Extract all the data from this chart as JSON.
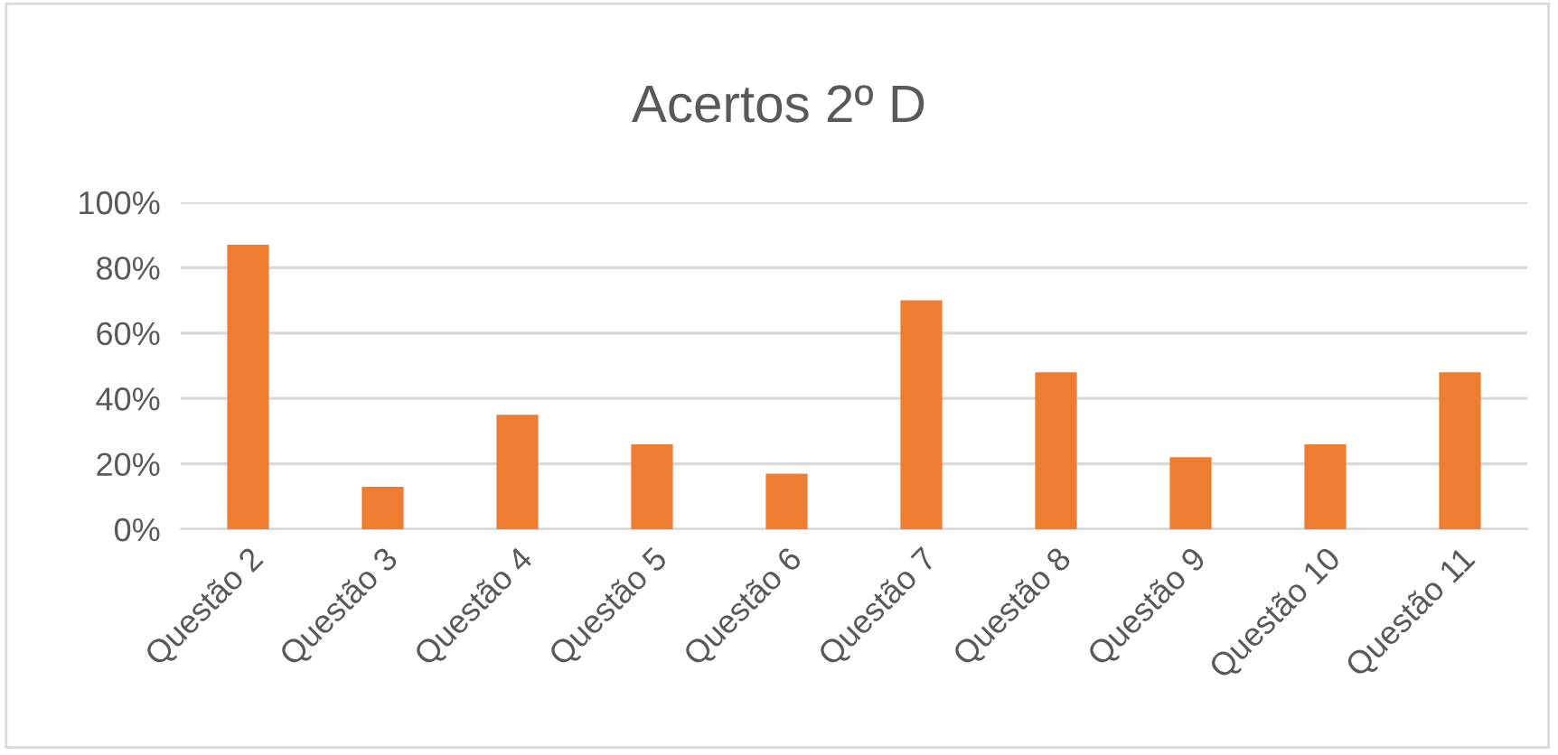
{
  "chart_data": {
    "type": "bar",
    "title": "Acertos 2º D",
    "categories": [
      "Questão 2",
      "Questão 3",
      "Questão 4",
      "Questão 5",
      "Questão 6",
      "Questão 7",
      "Questão 8",
      "Questão 9",
      "Questão 10",
      "Questão 11"
    ],
    "values": [
      87,
      13,
      35,
      26,
      17,
      70,
      48,
      22,
      26,
      48
    ],
    "color": "#ed7d31",
    "ylim": [
      0,
      100
    ],
    "yticks": [
      {
        "value": 0,
        "label": "0%"
      },
      {
        "value": 20,
        "label": "20%"
      },
      {
        "value": 40,
        "label": "40%"
      },
      {
        "value": 60,
        "label": "60%"
      },
      {
        "value": 80,
        "label": "80%"
      },
      {
        "value": 100,
        "label": "100%"
      }
    ],
    "grid": "y"
  }
}
